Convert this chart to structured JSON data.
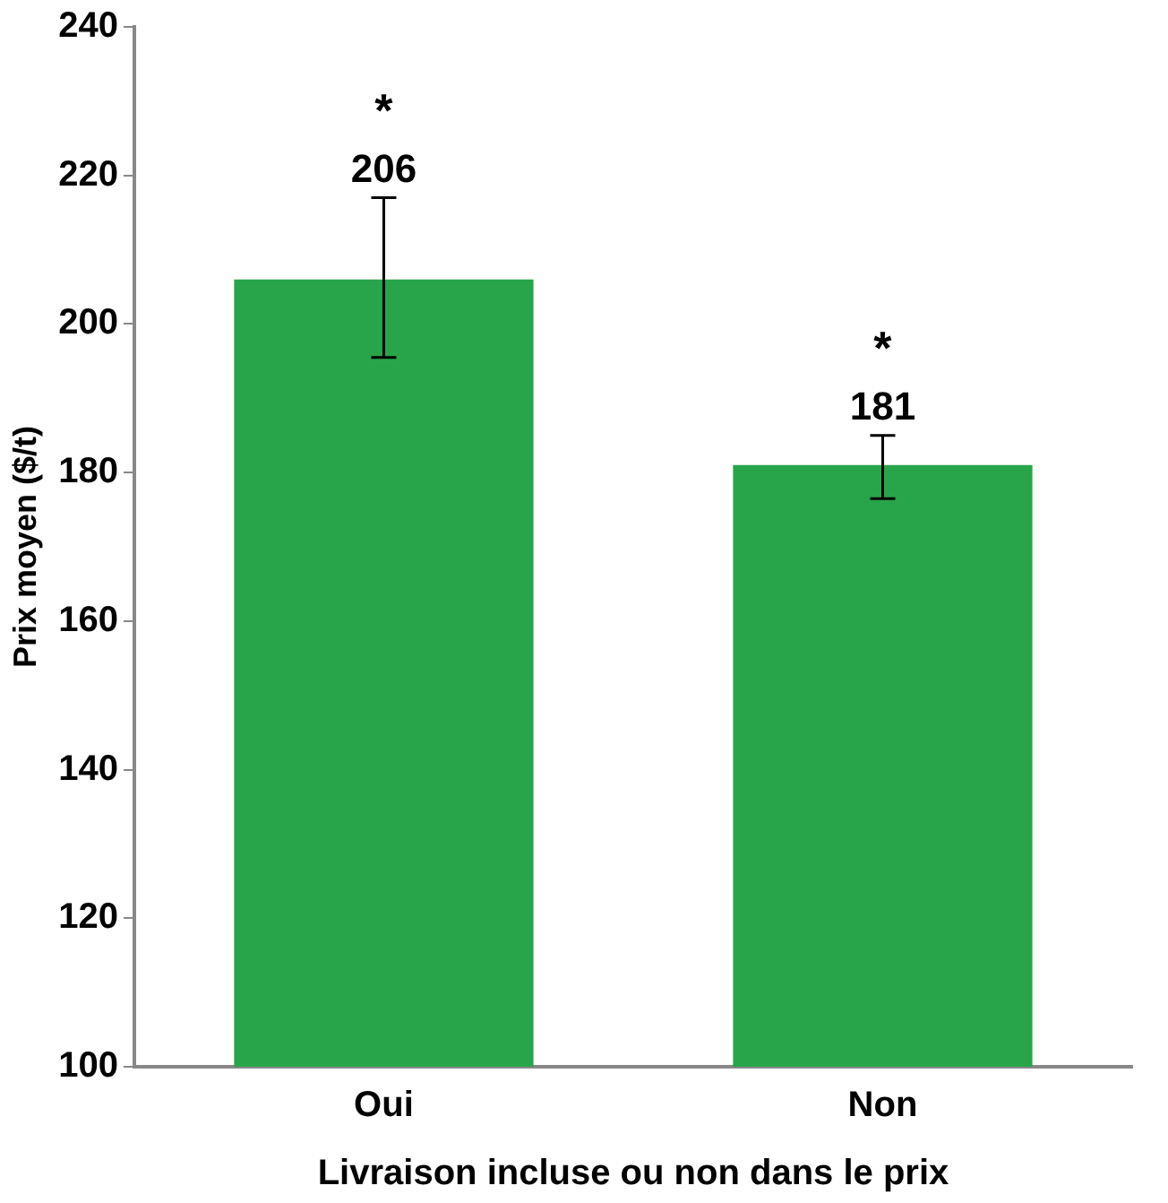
{
  "chart_data": {
    "type": "bar",
    "xlabel": "Livraison incluse ou non dans le prix",
    "ylabel": "Prix moyen ($/t)",
    "categories": [
      "Oui",
      "Non"
    ],
    "values": [
      206,
      181
    ],
    "errors": [
      [
        195.5,
        217
      ],
      [
        176.5,
        185
      ]
    ],
    "color": "#28a54a",
    "data_labels": true,
    "annotations": [
      "*",
      "*"
    ],
    "ylim": [
      100,
      240
    ],
    "yticks": [
      100,
      120,
      140,
      160,
      180,
      200,
      220,
      240
    ],
    "grid": false,
    "legend": false
  }
}
